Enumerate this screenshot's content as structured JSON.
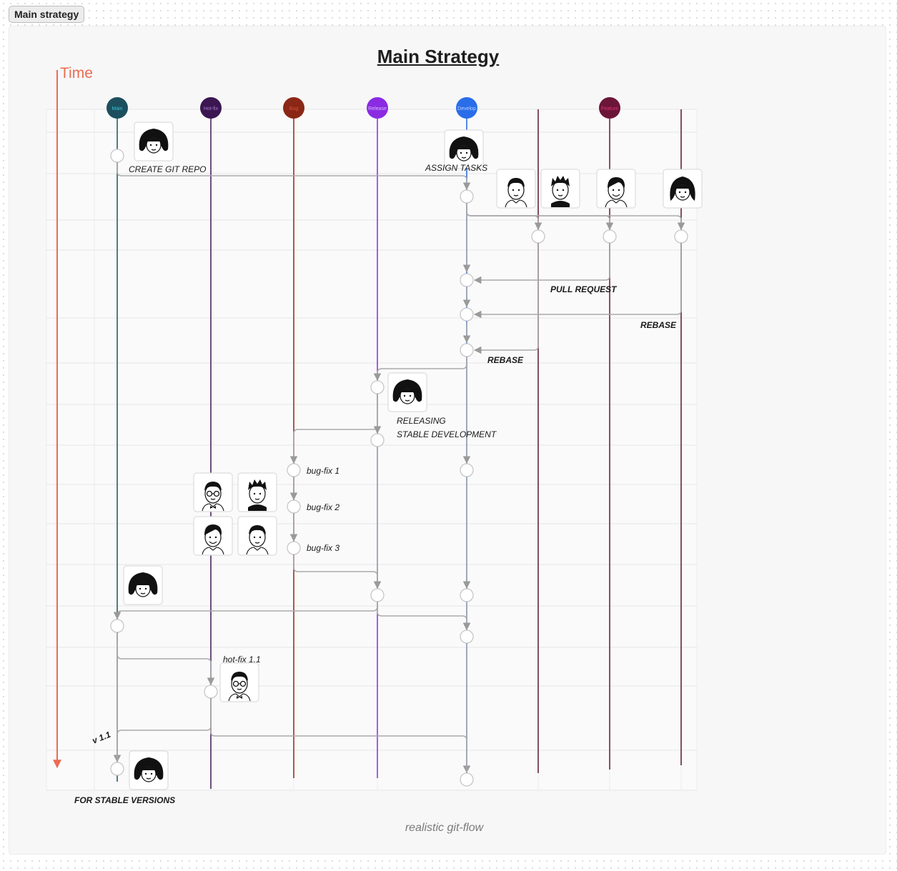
{
  "frame_tab": "Main strategy",
  "title": "Main Strategy",
  "time_label": "Time",
  "footer": "realistic git-flow",
  "branches": [
    {
      "key": "main",
      "label": "Main",
      "color": "#1d4f5e",
      "labelColor": "#3cc3d8",
      "header": true
    },
    {
      "key": "hotfix",
      "label": "Hot-fix",
      "color": "#3b1651",
      "labelColor": "#a47cc6",
      "header": true
    },
    {
      "key": "bug",
      "label": "Bug",
      "color": "#8a2716",
      "labelColor": "#d9503a",
      "header": true
    },
    {
      "key": "release",
      "label": "Release",
      "color": "#8a2be2",
      "labelColor": "#dab6ff",
      "header": true
    },
    {
      "key": "develop",
      "label": "Develop",
      "color": "#2a6de8",
      "labelColor": "#b9d1ff",
      "header": true
    },
    {
      "key": "f1",
      "label": "",
      "color": "#5a1430",
      "labelColor": "",
      "header": false
    },
    {
      "key": "feature",
      "label": "Feature",
      "color": "#6b1638",
      "labelColor": "#e02d76",
      "header": true
    },
    {
      "key": "f3",
      "label": "",
      "color": "#5a1430",
      "labelColor": "",
      "header": false
    }
  ],
  "labels": {
    "create_repo": "CREATE GIT REPO",
    "assign_tasks": "ASSIGN TASKS",
    "pull_request": "PULL REQUEST",
    "rebase_1": "REBASE",
    "rebase_2": "REBASE",
    "releasing_1": "RELEASING",
    "releasing_2": "STABLE DEVELOPMENT",
    "bugfix_1": "bug-fix 1",
    "bugfix_2": "bug-fix 2",
    "bugfix_3": "bug-fix 3",
    "hotfix_11": "hot-fix 1.1",
    "version": "v 1.1",
    "stable_versions": "FOR STABLE VERSIONS"
  },
  "colors": {
    "time_arrow": "#ec6b52",
    "connector": "#a9a9a9",
    "commit_fill": "#ffffff",
    "commit_stroke": "#c7c7c7"
  },
  "avatars": [
    {
      "kind": "woman-lead"
    },
    {
      "kind": "woman-lead"
    },
    {
      "kind": "man-short"
    },
    {
      "kind": "man-spiky"
    },
    {
      "kind": "man-smile"
    },
    {
      "kind": "woman-long"
    },
    {
      "kind": "woman-lead"
    },
    {
      "kind": "man-glasses"
    },
    {
      "kind": "man-spiky"
    },
    {
      "kind": "man-smile"
    },
    {
      "kind": "man-short"
    },
    {
      "kind": "woman-lead"
    },
    {
      "kind": "man-glasses"
    },
    {
      "kind": "woman-lead"
    }
  ]
}
